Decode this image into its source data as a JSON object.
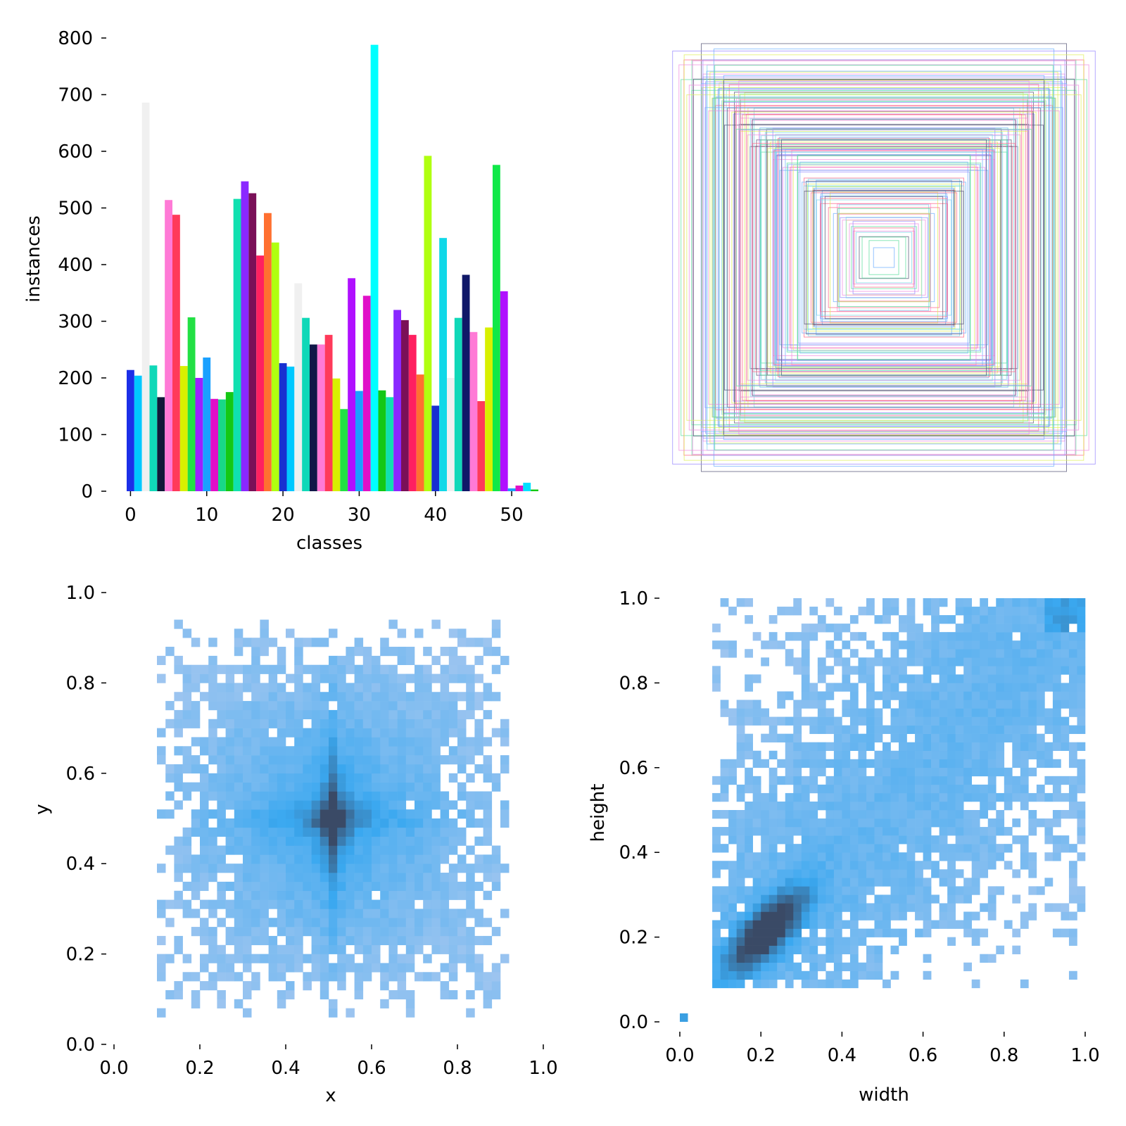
{
  "chart_data": [
    {
      "type": "bar",
      "xlabel": "classes",
      "ylabel": "instances",
      "xticks": [
        "0",
        "10",
        "20",
        "30",
        "40",
        "50"
      ],
      "yticks": [
        "0",
        "100",
        "200",
        "300",
        "400",
        "500",
        "600",
        "700",
        "800"
      ],
      "xlim": [
        -0.5,
        53.5
      ],
      "ylim": [
        0,
        800
      ],
      "grid": false,
      "categories": [
        0,
        1,
        2,
        3,
        4,
        5,
        6,
        7,
        8,
        9,
        10,
        11,
        12,
        13,
        14,
        15,
        16,
        17,
        18,
        19,
        20,
        21,
        22,
        23,
        24,
        25,
        26,
        27,
        28,
        29,
        30,
        31,
        32,
        33,
        34,
        35,
        36,
        37,
        38,
        39,
        40,
        41,
        42,
        43,
        44,
        45,
        46,
        47,
        48,
        49,
        50,
        51,
        52,
        53
      ],
      "values": [
        214,
        204,
        686,
        222,
        166,
        514,
        488,
        221,
        307,
        200,
        236,
        163,
        162,
        175,
        516,
        547,
        526,
        416,
        491,
        439,
        226,
        220,
        367,
        306,
        259,
        259,
        276,
        199,
        145,
        376,
        177,
        345,
        788,
        178,
        166,
        320,
        302,
        276,
        206,
        592,
        151,
        447,
        200,
        306,
        382,
        281,
        159,
        289,
        576,
        353,
        5,
        10,
        15,
        3
      ],
      "colors": [
        "#1c2fe8",
        "#00c8ff",
        "#f0f0f0",
        "#10d8b8",
        "#101838",
        "#ff7ad6",
        "#ff3a5a",
        "#d8f000",
        "#22e044",
        "#9c20ff",
        "#1aa0ff",
        "#e010c8",
        "#18d888",
        "#14c814",
        "#10e0b0",
        "#8a28ff",
        "#7a1058",
        "#ff2060",
        "#ff7030",
        "#b0ff10",
        "#1830d0",
        "#00c8ff",
        "#f0f0f0",
        "#10d8b8",
        "#101848",
        "#ff7ad6",
        "#ff3a5a",
        "#d8f000",
        "#22e044",
        "#b010ff",
        "#1aa0ff",
        "#e010c8",
        "#00ffff",
        "#14c814",
        "#10e0b0",
        "#8a28ff",
        "#7a1058",
        "#ff2060",
        "#ff7030",
        "#b0ff10",
        "#1830d0",
        "#10d8e8",
        "#f0f0f0",
        "#10d8b8",
        "#101868",
        "#ff7ad6",
        "#ff3a5a",
        "#d8f000",
        "#10e848",
        "#b010ff",
        "#1aa0ff",
        "#e010c8",
        "#00e0ff",
        "#14c814"
      ]
    },
    {
      "type": "box-overlay",
      "description": "",
      "colors": [
        "#ff6a8a",
        "#7fd8e8",
        "#9b8cff",
        "#e0f060",
        "#5a5a7a",
        "#60e0a0",
        "#f090e0",
        "#70b0ff"
      ]
    },
    {
      "type": "heatmap",
      "xlabel": "x",
      "ylabel": "y",
      "xticks": [
        "0.0",
        "0.2",
        "0.4",
        "0.6",
        "0.8",
        "1.0"
      ],
      "yticks": [
        "0.0",
        "0.2",
        "0.4",
        "0.6",
        "0.8",
        "1.0"
      ],
      "xlim": [
        0,
        1
      ],
      "ylim": [
        0,
        1
      ],
      "bins": 50,
      "center": [
        0.51,
        0.5
      ],
      "spread": [
        0.22,
        0.2
      ],
      "colors": {
        "low": "#a8c8f0",
        "mid": "#3aa8f0",
        "high": "#3a4a66"
      }
    },
    {
      "type": "heatmap",
      "xlabel": "width",
      "ylabel": "height",
      "xticks": [
        "0.0",
        "0.2",
        "0.4",
        "0.6",
        "0.8",
        "1.0"
      ],
      "yticks": [
        "0.0",
        "0.2",
        "0.4",
        "0.6",
        "0.8",
        "1.0"
      ],
      "xlim": [
        0,
        1
      ],
      "ylim": [
        0,
        1
      ],
      "bins": 50,
      "peak": [
        0.2,
        0.23
      ],
      "colors": {
        "low": "#a8c8f0",
        "mid": "#3aa8f0",
        "high": "#3a4a66"
      }
    }
  ]
}
